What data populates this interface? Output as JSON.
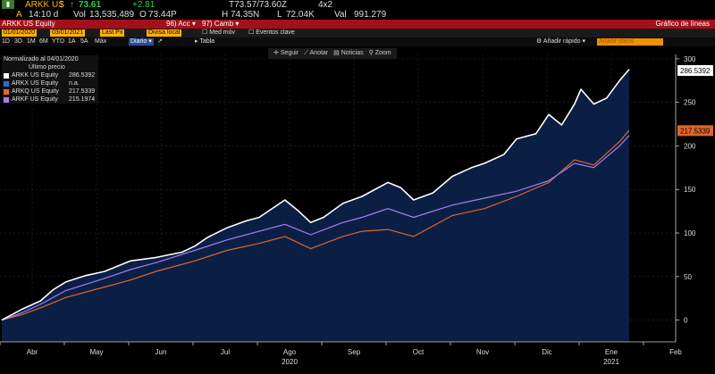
{
  "header": {
    "ticker": "ARKK US",
    "ticker_suffix": "$",
    "price": "73.61",
    "change": "+2.81",
    "bidask": "T73.57/73.60Z",
    "size": "4x2",
    "row2_a": "A",
    "time": "14:10 d",
    "vol_label": "Vol",
    "volume": "13,535,489",
    "o_label": "O",
    "open": "73.44P",
    "h_label": "H",
    "high": "74.35N",
    "l_label": "L",
    "low": "72.04K",
    "val_label": "Val",
    "value": "991.279"
  },
  "menu": {
    "security": "ARKK US Equity",
    "acc": "Acc",
    "camb": "Camb",
    "chart_title": "Gráfico de líneas"
  },
  "controls": {
    "start_date": "01/01/2020",
    "end_date": "03/01/2021",
    "last_px": "Last Px",
    "divisa": "Divisa local",
    "med_mov": "Med móv",
    "eventos": "Eventos clave",
    "add_fast": "Añadir rápido",
    "template": "Añadir datos"
  },
  "periods": [
    "1D",
    "3D",
    "1M",
    "6M",
    "YTD",
    "1A",
    "5A",
    "Máx"
  ],
  "freq": "Diario",
  "tabla": "Tabla",
  "toolbar": [
    "Seguir",
    "Anotar",
    "Noticias",
    "Zoom"
  ],
  "legend": {
    "title": "Normalizado al 04/01/2020",
    "subtitle": "Último precio",
    "items": [
      {
        "name": "ARKK US Equity",
        "value": "286.5392",
        "color": "#ffffff"
      },
      {
        "name": "ARKX US Equity",
        "value": "n.a.",
        "color": "#2b6cd0"
      },
      {
        "name": "ARKQ US Equity",
        "value": "217.5339",
        "color": "#e0662a"
      },
      {
        "name": "ARKF US Equity",
        "value": "215.1974",
        "color": "#a77cf0"
      }
    ]
  },
  "chart_data": {
    "type": "area",
    "x_ticks": [
      "Abr",
      "May",
      "Jun",
      "Jul",
      "Ago",
      "Sep",
      "Oct",
      "Nov",
      "Dic",
      "Ene",
      "Feb"
    ],
    "year_labels": [
      {
        "label": "2020",
        "at": "Ago"
      },
      {
        "label": "2021",
        "at": "Ene"
      }
    ],
    "y_ticks": [
      0,
      50,
      100,
      150,
      200,
      250,
      300
    ],
    "ylim": [
      -25,
      305
    ],
    "x_range": [
      "Mar 2020",
      "Feb 2021"
    ],
    "last_value_tags": [
      {
        "series": "ARKK US Equity",
        "value": "286.5392",
        "color": "#ffffff"
      },
      {
        "series": "ARKQ US Equity",
        "value": "217.5339",
        "color": "#e0662a"
      }
    ],
    "series": [
      {
        "name": "ARKK US Equity",
        "color": "#ffffff",
        "fill": "#0b1f45",
        "x": [
          0,
          0.3,
          0.6,
          0.8,
          1.0,
          1.3,
          1.6,
          2.0,
          2.4,
          2.8,
          3.0,
          3.2,
          3.5,
          3.8,
          4.0,
          4.4,
          4.6,
          4.8,
          5.0,
          5.3,
          5.6,
          6.0,
          6.2,
          6.4,
          6.7,
          7.0,
          7.3,
          7.5,
          7.8,
          8.0,
          8.3,
          8.5,
          8.7,
          8.9,
          9.0,
          9.2,
          9.4,
          9.6,
          9.75
        ],
        "values": [
          0,
          12,
          22,
          35,
          44,
          51,
          56,
          68,
          72,
          78,
          85,
          95,
          106,
          114,
          118,
          138,
          126,
          112,
          118,
          134,
          142,
          158,
          152,
          138,
          146,
          165,
          175,
          180,
          190,
          208,
          214,
          236,
          224,
          248,
          265,
          248,
          255,
          275,
          288
        ]
      },
      {
        "name": "ARKF US Equity",
        "color": "#a77cf0",
        "x": [
          0,
          0.3,
          0.6,
          1.0,
          1.6,
          2.0,
          2.4,
          3.0,
          3.5,
          4.0,
          4.4,
          4.8,
          5.3,
          5.6,
          6.0,
          6.4,
          7.0,
          7.5,
          8.0,
          8.5,
          8.9,
          9.2,
          9.6,
          9.75
        ],
        "values": [
          0,
          8,
          18,
          34,
          48,
          58,
          66,
          80,
          92,
          102,
          110,
          98,
          112,
          118,
          128,
          118,
          132,
          140,
          148,
          160,
          180,
          175,
          200,
          212
        ]
      },
      {
        "name": "ARKQ US Equity",
        "color": "#e0662a",
        "x": [
          0,
          0.3,
          0.6,
          1.0,
          1.6,
          2.0,
          2.4,
          3.0,
          3.5,
          4.0,
          4.4,
          4.8,
          5.3,
          5.6,
          6.0,
          6.4,
          7.0,
          7.5,
          8.0,
          8.5,
          8.9,
          9.2,
          9.6,
          9.75
        ],
        "values": [
          0,
          6,
          14,
          26,
          38,
          46,
          56,
          68,
          80,
          88,
          96,
          82,
          96,
          102,
          104,
          96,
          120,
          128,
          142,
          158,
          184,
          178,
          205,
          218
        ]
      }
    ]
  }
}
